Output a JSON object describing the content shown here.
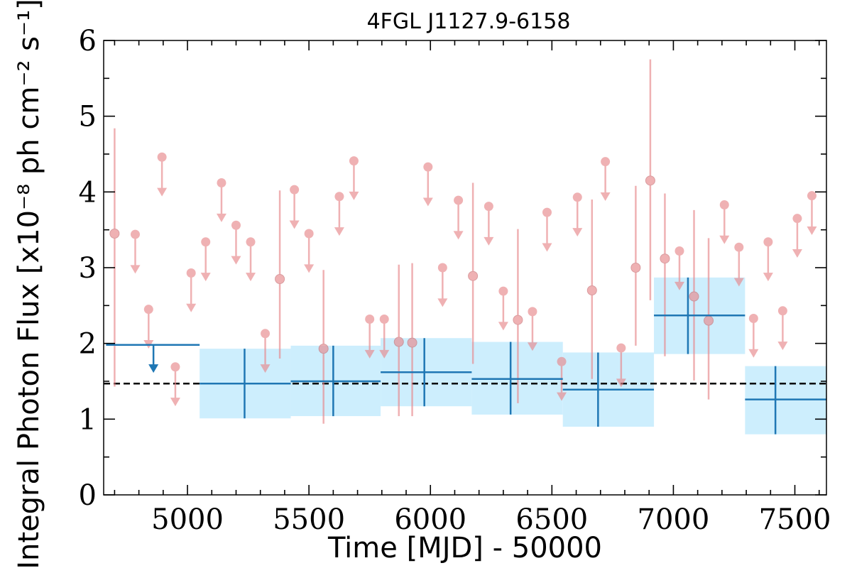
{
  "chart_data": {
    "type": "scatter",
    "title": "4FGL J1127.9-6158",
    "xlabel": "Time [MJD] - 50000",
    "ylabel": "Integral Photon Flux [x10⁻⁸ ph cm⁻² s⁻¹]",
    "xlim": [
      4655,
      7630
    ],
    "ylim": [
      0,
      6
    ],
    "x_ticks": [
      5000,
      5500,
      6000,
      6500,
      7000,
      7500
    ],
    "x_tick_labels": [
      "5000",
      "5500",
      "6000",
      "6500",
      "7000",
      "7500"
    ],
    "y_ticks": [
      0,
      1,
      2,
      3,
      4,
      5,
      6
    ],
    "y_tick_labels": [
      "0",
      "1",
      "2",
      "3",
      "4",
      "5",
      "6"
    ],
    "grid": false,
    "mean_flux": 1.47,
    "colors": {
      "short_bins": "#e8888c",
      "long_bins": "#1f77b4",
      "long_bins_band": "#cdeefd",
      "mean_line": "#000000"
    },
    "short_bins_detections": [
      {
        "x": 4700,
        "y": 3.45,
        "yerr_low": 1.43,
        "yerr_high": 4.84
      },
      {
        "x": 5380,
        "y": 2.85,
        "yerr_low": 1.8,
        "yerr_high": 4.02
      },
      {
        "x": 5560,
        "y": 1.93,
        "yerr_low": 0.94,
        "yerr_high": 2.97
      },
      {
        "x": 5870,
        "y": 2.02,
        "yerr_low": 1.04,
        "yerr_high": 3.04
      },
      {
        "x": 5925,
        "y": 2.01,
        "yerr_low": 1.04,
        "yerr_high": 3.06
      },
      {
        "x": 6175,
        "y": 2.89,
        "yerr_low": 1.73,
        "yerr_high": 4.12
      },
      {
        "x": 6360,
        "y": 2.31,
        "yerr_low": 1.21,
        "yerr_high": 3.51
      },
      {
        "x": 6665,
        "y": 2.7,
        "yerr_low": 1.53,
        "yerr_high": 3.9
      },
      {
        "x": 6845,
        "y": 3.0,
        "yerr_low": 1.97,
        "yerr_high": 4.08
      },
      {
        "x": 6905,
        "y": 4.15,
        "yerr_low": 2.57,
        "yerr_high": 5.75
      },
      {
        "x": 6965,
        "y": 3.12,
        "yerr_low": 1.83,
        "yerr_high": 3.98
      },
      {
        "x": 7085,
        "y": 2.62,
        "yerr_low": 1.51,
        "yerr_high": 3.76
      },
      {
        "x": 7145,
        "y": 2.3,
        "yerr_low": 1.26,
        "yerr_high": 3.39
      }
    ],
    "short_bins_upper_limits": [
      {
        "x": 4785,
        "y": 3.44
      },
      {
        "x": 4840,
        "y": 2.45
      },
      {
        "x": 4895,
        "y": 4.46
      },
      {
        "x": 4950,
        "y": 1.69
      },
      {
        "x": 5015,
        "y": 2.93
      },
      {
        "x": 5075,
        "y": 3.34
      },
      {
        "x": 5140,
        "y": 4.12
      },
      {
        "x": 5200,
        "y": 3.56
      },
      {
        "x": 5260,
        "y": 3.34
      },
      {
        "x": 5320,
        "y": 2.13
      },
      {
        "x": 5440,
        "y": 4.03
      },
      {
        "x": 5500,
        "y": 3.45
      },
      {
        "x": 5625,
        "y": 3.94
      },
      {
        "x": 5685,
        "y": 4.41
      },
      {
        "x": 5750,
        "y": 2.32
      },
      {
        "x": 5810,
        "y": 2.32
      },
      {
        "x": 5990,
        "y": 4.33
      },
      {
        "x": 6050,
        "y": 3.0
      },
      {
        "x": 6115,
        "y": 3.89
      },
      {
        "x": 6240,
        "y": 3.81
      },
      {
        "x": 6300,
        "y": 2.69
      },
      {
        "x": 6420,
        "y": 2.42
      },
      {
        "x": 6480,
        "y": 3.73
      },
      {
        "x": 6540,
        "y": 1.76
      },
      {
        "x": 6605,
        "y": 3.93
      },
      {
        "x": 6720,
        "y": 4.4
      },
      {
        "x": 6785,
        "y": 1.94
      },
      {
        "x": 7025,
        "y": 3.22
      },
      {
        "x": 7210,
        "y": 3.83
      },
      {
        "x": 7270,
        "y": 3.27
      },
      {
        "x": 7330,
        "y": 2.33
      },
      {
        "x": 7390,
        "y": 3.34
      },
      {
        "x": 7450,
        "y": 2.43
      },
      {
        "x": 7510,
        "y": 3.65
      },
      {
        "x": 7570,
        "y": 3.95
      }
    ],
    "long_bins": [
      {
        "x_start": 4665,
        "x_end": 5050,
        "x": 4860,
        "y": 1.98,
        "upper_limit": true
      },
      {
        "x_start": 5050,
        "x_end": 5425,
        "x": 5235,
        "y": 1.47,
        "yerr_low": 1.01,
        "yerr_high": 1.93
      },
      {
        "x_start": 5425,
        "x_end": 5795,
        "x": 5600,
        "y": 1.5,
        "yerr_low": 1.04,
        "yerr_high": 1.97
      },
      {
        "x_start": 5795,
        "x_end": 6170,
        "x": 5975,
        "y": 1.62,
        "yerr_low": 1.17,
        "yerr_high": 2.07
      },
      {
        "x_start": 6170,
        "x_end": 6545,
        "x": 6330,
        "y": 1.53,
        "yerr_low": 1.06,
        "yerr_high": 2.02
      },
      {
        "x_start": 6545,
        "x_end": 6920,
        "x": 6690,
        "y": 1.39,
        "yerr_low": 0.9,
        "yerr_high": 1.88
      },
      {
        "x_start": 6920,
        "x_end": 7295,
        "x": 7060,
        "y": 2.37,
        "yerr_low": 1.86,
        "yerr_high": 2.87
      },
      {
        "x_start": 7295,
        "x_end": 7665,
        "x": 7420,
        "y": 1.26,
        "yerr_low": 0.8,
        "yerr_high": 1.7
      }
    ]
  }
}
